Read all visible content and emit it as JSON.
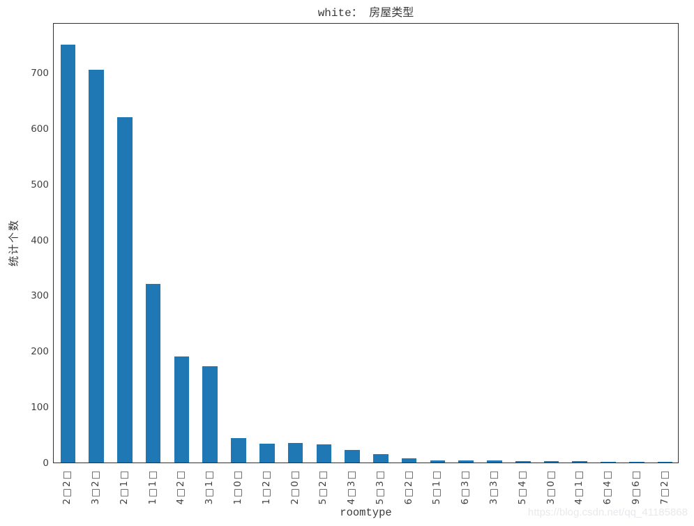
{
  "title": "white： 房屋类型",
  "watermark": "https://blog.csdn.net/qq_41185868",
  "chart_data": {
    "type": "bar",
    "title": "white： 房屋类型",
    "xlabel": "roomtype",
    "ylabel": "统计个数",
    "categories": [
      "2□2□",
      "3□2□",
      "2□1□",
      "1□1□",
      "4□2□",
      "3□1□",
      "1□0□",
      "1□2□",
      "2□0□",
      "5□2□",
      "4□3□",
      "5□3□",
      "6□2□",
      "5□1□",
      "6□3□",
      "3□3□",
      "5□4□",
      "3□0□",
      "4□1□",
      "6□4□",
      "9□6□",
      "7□2□"
    ],
    "values": [
      750,
      705,
      620,
      320,
      190,
      173,
      44,
      34,
      35,
      33,
      22,
      15,
      8,
      4,
      4,
      4,
      3,
      3,
      3,
      1,
      1,
      1
    ],
    "yticks": [
      0,
      100,
      200,
      300,
      400,
      500,
      600,
      700
    ],
    "ylim": [
      0,
      790
    ],
    "grid": false,
    "legend": null,
    "bar_color": "#1f77b4",
    "axis_color": "#2e2e2e",
    "tick_label_color": "#404040"
  }
}
